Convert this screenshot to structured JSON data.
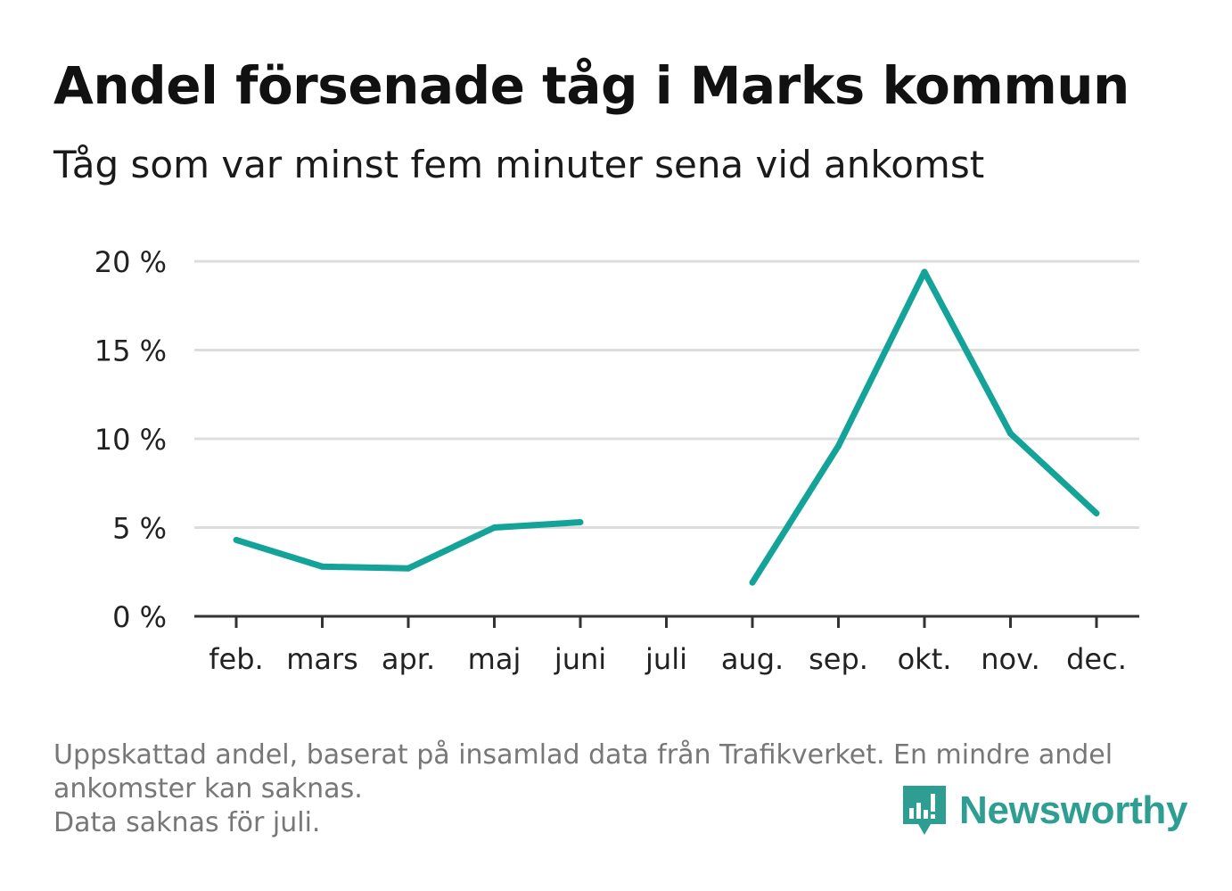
{
  "chart_data": {
    "type": "line",
    "title": "Andel försenade tåg i Marks kommun",
    "subtitle": "Tåg som var minst fem minuter sena vid ankomst",
    "categories": [
      "feb.",
      "mars",
      "apr.",
      "maj",
      "juni",
      "juli",
      "aug.",
      "sep.",
      "okt.",
      "nov.",
      "dec."
    ],
    "series": [
      {
        "values": [
          4.3,
          2.8,
          2.7,
          5.0,
          5.3,
          null,
          1.9,
          9.6,
          19.4,
          10.3,
          5.8
        ]
      }
    ],
    "ylim": [
      0,
      20
    ],
    "yticks": [
      0,
      5,
      10,
      15,
      20
    ],
    "ytick_labels": [
      "0 %",
      "5 %",
      "10 %",
      "15 %",
      "20 %"
    ],
    "grid": true,
    "line_color": "#13a399",
    "grid_color": "#dddddd",
    "axis_color": "#333333"
  },
  "footnote": {
    "line1": "Uppskattad andel, baserat på insamlad data från Trafikverket. En mindre andel",
    "line2": "ankomster kan saknas.",
    "line3": "Data saknas för juli."
  },
  "logo": {
    "text": "Newsworthy",
    "icon": "newsworthy-chart-icon",
    "color": "#2e9e93"
  }
}
